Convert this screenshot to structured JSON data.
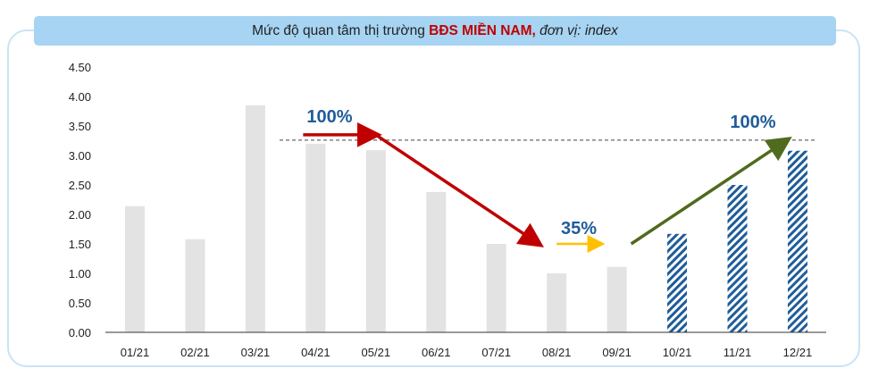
{
  "title": {
    "prefix": "Mức độ quan tâm thị trường ",
    "highlight": "BĐS MIỀN NAM",
    "suffix_sep": ", ",
    "unit": "đơn vị: index"
  },
  "colors": {
    "actual_bar": "#e3e3e3",
    "forecast_bar": "#1f5c99",
    "red_arrow": "#c00000",
    "yellow_arrow": "#ffc000",
    "green_arrow": "#4f6b1e",
    "annotation_text": "#1f5c99"
  },
  "chart_data": {
    "type": "bar",
    "title": "Mức độ quan tâm thị trường BĐS MIỀN NAM, đơn vị: index",
    "xlabel": "",
    "ylabel": "",
    "ylim": [
      0,
      4.5
    ],
    "yticks": [
      "0.00",
      "0.50",
      "1.00",
      "1.50",
      "2.00",
      "2.50",
      "3.00",
      "3.50",
      "4.00",
      "4.50"
    ],
    "categories": [
      "01/21",
      "02/21",
      "03/21",
      "04/21",
      "05/21",
      "06/21",
      "07/21",
      "08/21",
      "09/21",
      "10/21",
      "11/21",
      "12/21"
    ],
    "values": [
      2.14,
      1.58,
      3.85,
      3.2,
      3.09,
      2.38,
      1.5,
      1.0,
      1.11,
      1.67,
      2.5,
      3.08
    ],
    "forecast": [
      false,
      false,
      false,
      false,
      false,
      false,
      false,
      false,
      false,
      true,
      true,
      true
    ],
    "grid": false,
    "reference_line": 3.26,
    "annotations": [
      {
        "text": "100%",
        "arrow": "red",
        "from": [
          "04/21",
          3.35
        ],
        "to": [
          "05/21",
          3.35
        ]
      },
      {
        "text": "",
        "arrow": "red",
        "from": [
          "05/21",
          3.35
        ],
        "to": [
          "08/21",
          1.5
        ]
      },
      {
        "text": "35%",
        "arrow": "yellow",
        "from": [
          "08/21",
          1.5
        ],
        "to": [
          "09/21",
          1.5
        ]
      },
      {
        "text": "100%",
        "arrow": "green",
        "from": [
          "09/21",
          1.5
        ],
        "to": [
          "12/21",
          3.26
        ]
      }
    ]
  }
}
